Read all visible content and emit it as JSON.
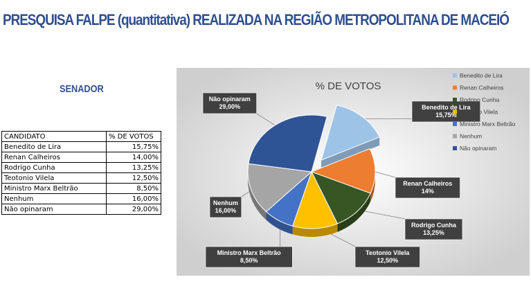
{
  "header": {
    "title": "PRESQUISA FALPE (quantitativa) REALIZADA NA REGIÃO METROPOLITANA DE MACEIÓ"
  },
  "section": {
    "title": "SENADOR"
  },
  "table": {
    "headers": [
      "CANDIDATO",
      "% DE VOTOS"
    ],
    "rows": [
      {
        "name": "Benedito de Lira",
        "value": "15,75%"
      },
      {
        "name": "Renan Calheiros",
        "value": "14,00%"
      },
      {
        "name": "Rodrigo Cunha",
        "value": "13,25%"
      },
      {
        "name": "Teotonio Vilela",
        "value": "12,50%"
      },
      {
        "name": "Ministro Marx Beltrão",
        "value": "8,50%"
      },
      {
        "name": "Nenhum",
        "value": "16,00%"
      },
      {
        "name": "Não opinaram",
        "value": "29,00%"
      }
    ]
  },
  "chart_data": {
    "type": "pie",
    "title": "% DE VOTOS",
    "legend_position": "right",
    "categories": [
      "Benedito de Lira",
      "Renan Calheiros",
      "Rodrigo Cunha",
      "Teotonio Vilela",
      "Ministro Marx Beltrão",
      "Nenhum",
      "Não opinaram"
    ],
    "values": [
      15.75,
      14,
      13.25,
      12.5,
      8.5,
      16,
      29
    ],
    "data_labels": [
      "15,75%",
      "14%",
      "13,25%",
      "12,50%",
      "8,50%",
      "16,00%",
      "29,00%"
    ],
    "colors": [
      "#9dc3e6",
      "#ed7d31",
      "#375623",
      "#ffc000",
      "#4472c4",
      "#a5a5a5",
      "#2e5496"
    ],
    "exploded": "Benedito de Lira"
  }
}
